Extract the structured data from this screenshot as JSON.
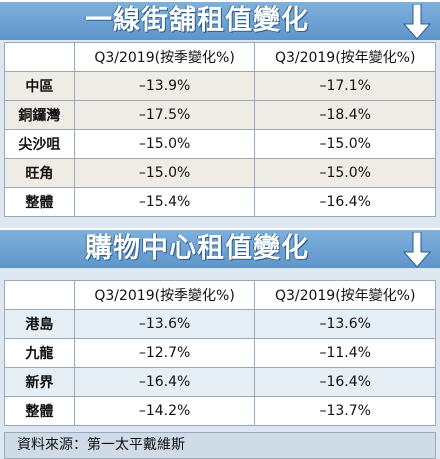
{
  "section1": {
    "title": "一線街舖租值變化",
    "arrow_icon": "down-arrow-icon",
    "headers": [
      "",
      "Q3/2019(按季變化%)",
      "Q3/2019(按年變化%)"
    ],
    "rows": [
      {
        "label": "中區",
        "qoq": "–13.9%",
        "yoy": "–17.1%"
      },
      {
        "label": "銅鑼灣",
        "qoq": "–17.5%",
        "yoy": "–18.4%"
      },
      {
        "label": "尖沙咀",
        "qoq": "–15.0%",
        "yoy": "–15.0%"
      },
      {
        "label": "旺角",
        "qoq": "–15.0%",
        "yoy": "–15.0%"
      },
      {
        "label": "整體",
        "qoq": "–15.4%",
        "yoy": "–16.4%"
      }
    ]
  },
  "section2": {
    "title": "購物中心租值變化",
    "arrow_icon": "down-arrow-icon",
    "headers": [
      "",
      "Q3/2019(按季變化%)",
      "Q3/2019(按年變化%)"
    ],
    "rows": [
      {
        "label": "港島",
        "qoq": "–13.6%",
        "yoy": "–13.6%"
      },
      {
        "label": "九龍",
        "qoq": "–12.7%",
        "yoy": "–11.4%"
      },
      {
        "label": "新界",
        "qoq": "–16.4%",
        "yoy": "–16.4%"
      },
      {
        "label": "整體",
        "qoq": "–14.2%",
        "yoy": "–13.7%"
      }
    ]
  },
  "source": "資料來源：第一太平戴維斯",
  "colors": {
    "banner": "#6a9fd1",
    "arrow": "#ffffff",
    "border": "#9aa9b8"
  }
}
